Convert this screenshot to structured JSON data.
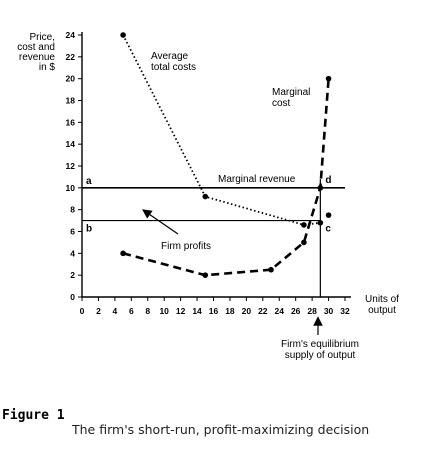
{
  "chart_data": {
    "type": "line",
    "ylabel": [
      "Price,",
      "cost and",
      "revenue",
      "in $"
    ],
    "xlabel": [
      "Units of",
      "output"
    ],
    "xlim": [
      0,
      32
    ],
    "ylim": [
      0,
      24
    ],
    "x_ticks": [
      0,
      2,
      4,
      6,
      8,
      10,
      12,
      14,
      16,
      18,
      20,
      22,
      24,
      26,
      28,
      30,
      32
    ],
    "y_ticks": [
      0,
      2,
      4,
      6,
      8,
      10,
      12,
      14,
      16,
      18,
      20,
      22,
      24
    ],
    "series": [
      {
        "name": "Average total costs",
        "label_lines": [
          "Average",
          "total costs"
        ],
        "style": "dotted",
        "x": [
          5,
          15,
          27,
          29
        ],
        "y": [
          24,
          9.2,
          6.6,
          6.8
        ]
      },
      {
        "name": "Marginal cost",
        "label_lines": [
          "Marginal",
          "cost"
        ],
        "style": "dashed",
        "x": [
          5,
          15,
          23,
          27,
          29,
          30
        ],
        "y": [
          4,
          2,
          2.5,
          5,
          10,
          20
        ]
      },
      {
        "name": "Marginal revenue",
        "label_lines": [
          "Marginal revenue"
        ],
        "style": "solid",
        "x": [
          0,
          32
        ],
        "y": [
          10,
          10
        ]
      }
    ],
    "profit_lower_y": 7,
    "equilibrium_x": 29,
    "extra_point": {
      "x": 30,
      "y": 7.5
    },
    "point_labels": {
      "a": "a",
      "b": "b",
      "c": "c",
      "d": "d"
    },
    "annotations": {
      "profits": "Firm profits",
      "equilibrium": [
        "Firm's equilibrium",
        "supply of output"
      ]
    }
  },
  "caption": {
    "label": "Figure 1",
    "text": "The firm's short-run, profit-maximizing decision"
  }
}
